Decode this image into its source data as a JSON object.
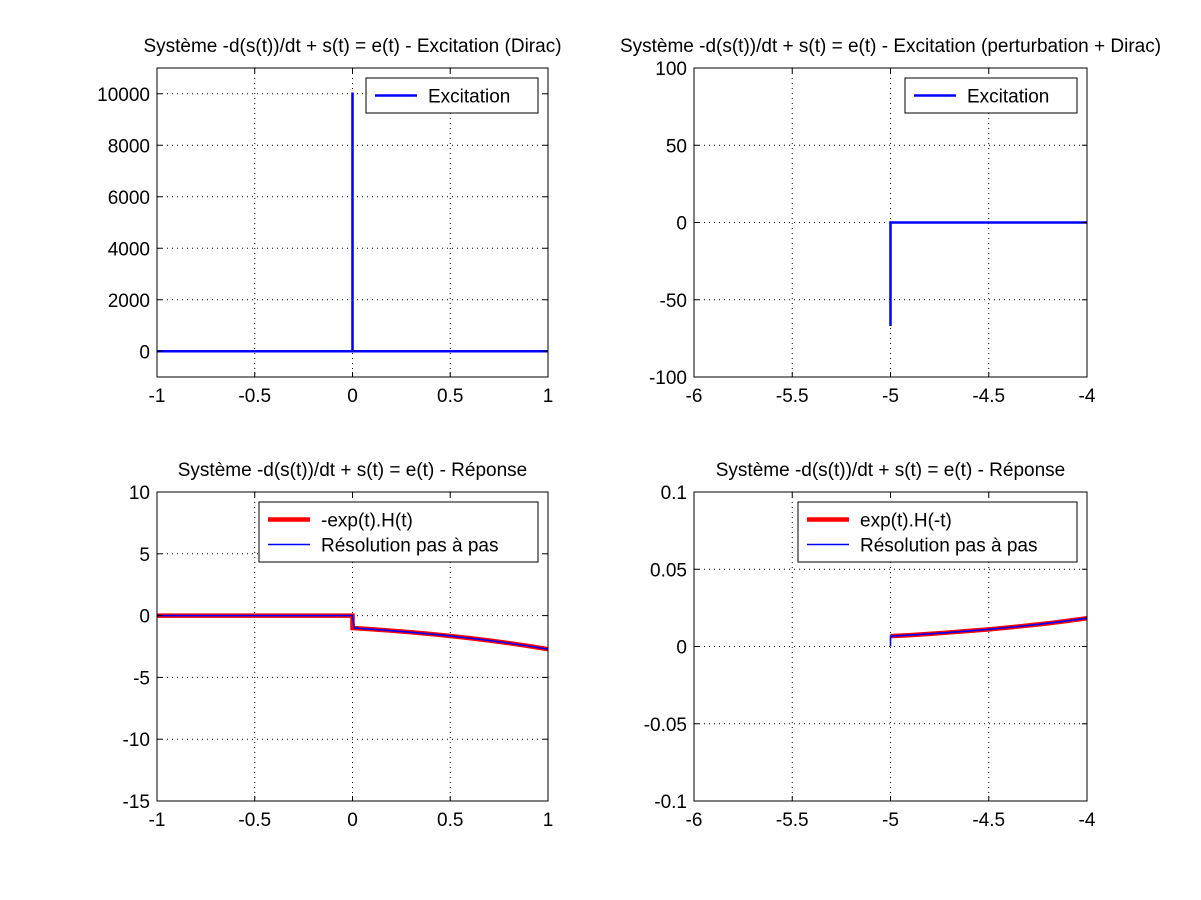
{
  "chart_data": [
    {
      "type": "line",
      "title": "Système -d(s(t))/dt + s(t) = e(t)  -  Excitation (Dirac)",
      "xlim": [
        -1,
        1
      ],
      "ylim": [
        -1000,
        11000
      ],
      "xticks": [
        -1,
        -0.5,
        0,
        0.5,
        1
      ],
      "xtick_labels": [
        "-1",
        "-0.5",
        "0",
        "0.5",
        "1"
      ],
      "yticks": [
        0,
        2000,
        4000,
        6000,
        8000,
        10000
      ],
      "ytick_labels": [
        "0",
        "2000",
        "4000",
        "6000",
        "8000",
        "10000"
      ],
      "grid": true,
      "legend_position": "top-right",
      "series": [
        {
          "name": "Excitation",
          "color": "#0000ff",
          "width": 2.5,
          "x": [
            -1,
            -0.0001,
            -0.0001,
            0.0001,
            0.0001,
            1
          ],
          "y": [
            0,
            0,
            10000,
            10000,
            0,
            0
          ]
        }
      ]
    },
    {
      "type": "line",
      "title": "Système -d(s(t))/dt + s(t) = e(t)  -  Excitation (perturbation + Dirac)",
      "xlim": [
        -6,
        -4
      ],
      "ylim": [
        -100,
        100
      ],
      "xticks": [
        -6,
        -5.5,
        -5,
        -4.5,
        -4
      ],
      "xtick_labels": [
        "-6",
        "-5.5",
        "-5",
        "-4.5",
        "-4"
      ],
      "yticks": [
        -100,
        -50,
        0,
        50,
        100
      ],
      "ytick_labels": [
        "-100",
        "-50",
        "0",
        "50",
        "100"
      ],
      "grid": true,
      "legend_position": "top-right",
      "series": [
        {
          "name": "Excitation",
          "color": "#0000ff",
          "width": 2.5,
          "x": [
            -5,
            -5,
            -4
          ],
          "y": [
            -67,
            0,
            0
          ]
        }
      ]
    },
    {
      "type": "line",
      "title": "Système -d(s(t))/dt + s(t) = e(t)  -  Réponse",
      "xlim": [
        -1,
        1
      ],
      "ylim": [
        -15,
        10
      ],
      "xticks": [
        -1,
        -0.5,
        0,
        0.5,
        1
      ],
      "xtick_labels": [
        "-1",
        "-0.5",
        "0",
        "0.5",
        "1"
      ],
      "yticks": [
        -15,
        -10,
        -5,
        0,
        5,
        10
      ],
      "ytick_labels": [
        "-15",
        "-10",
        "-5",
        "0",
        "5",
        "10"
      ],
      "grid": true,
      "legend_position": "top-right",
      "series": [
        {
          "name": "-exp(t).H(t)",
          "color": "#ff0000",
          "width": 4.5,
          "x": [
            -1,
            0,
            0,
            0.1,
            0.2,
            0.3,
            0.4,
            0.5,
            0.6,
            0.7,
            0.8,
            0.9,
            1.0
          ],
          "y": [
            0,
            0,
            -1,
            -1.105,
            -1.221,
            -1.35,
            -1.492,
            -1.649,
            -1.822,
            -2.014,
            -2.226,
            -2.46,
            -2.718
          ]
        },
        {
          "name": "Résolution pas à pas",
          "color": "#0000ff",
          "width": 1.6,
          "x": [
            -1,
            0,
            0.01,
            0.1,
            0.2,
            0.3,
            0.4,
            0.5,
            0.6,
            0.7,
            0.8,
            0.9,
            1.0
          ],
          "y": [
            0,
            0,
            -1.01,
            -1.105,
            -1.221,
            -1.35,
            -1.492,
            -1.649,
            -1.822,
            -2.014,
            -2.226,
            -2.46,
            -2.718
          ]
        }
      ]
    },
    {
      "type": "line",
      "title": "Système -d(s(t))/dt + s(t) = e(t)  -  Réponse",
      "xlim": [
        -6,
        -4
      ],
      "ylim": [
        -0.1,
        0.1
      ],
      "xticks": [
        -6,
        -5.5,
        -5,
        -4.5,
        -4
      ],
      "xtick_labels": [
        "-6",
        "-5.5",
        "-5",
        "-4.5",
        "-4"
      ],
      "yticks": [
        -0.1,
        -0.05,
        0,
        0.05,
        0.1
      ],
      "ytick_labels": [
        "-0.1",
        "-0.05",
        "0",
        "0.05",
        "0.1"
      ],
      "grid": true,
      "legend_position": "top-right",
      "series": [
        {
          "name": "exp(t).H(-t)",
          "color": "#ff0000",
          "width": 4.5,
          "x": [
            -5,
            -4.9,
            -4.8,
            -4.7,
            -4.6,
            -4.5,
            -4.4,
            -4.3,
            -4.2,
            -4.1,
            -4.0
          ],
          "y": [
            0.0067,
            0.0074,
            0.0082,
            0.0091,
            0.0101,
            0.0111,
            0.0123,
            0.0136,
            0.015,
            0.0166,
            0.0183
          ]
        },
        {
          "name": "Résolution pas à pas",
          "color": "#0000ff",
          "width": 1.6,
          "x": [
            -5,
            -5,
            -4.9,
            -4.8,
            -4.7,
            -4.6,
            -4.5,
            -4.4,
            -4.3,
            -4.2,
            -4.1,
            -4.0
          ],
          "y": [
            0,
            0.0067,
            0.0074,
            0.0082,
            0.0091,
            0.0101,
            0.0111,
            0.0123,
            0.0136,
            0.015,
            0.0166,
            0.0183
          ]
        }
      ]
    }
  ]
}
